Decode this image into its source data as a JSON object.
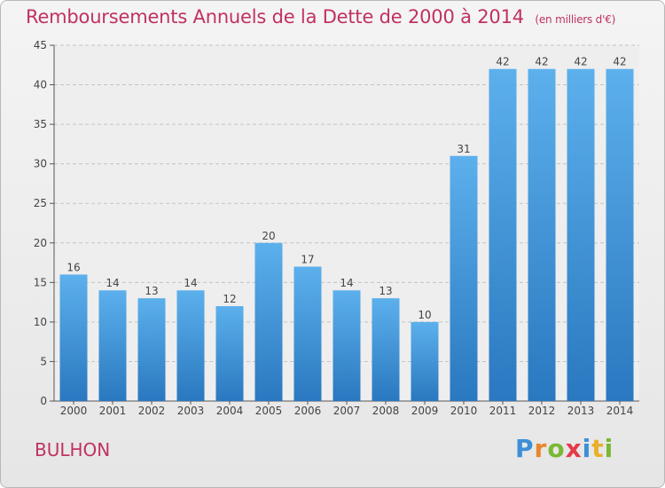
{
  "chart_data": {
    "type": "bar",
    "title": "Remboursements Annuels de la Dette de 2000 à 2014",
    "subtitle": "(en milliers d'€)",
    "categories": [
      "2000",
      "2001",
      "2002",
      "2003",
      "2004",
      "2005",
      "2006",
      "2007",
      "2008",
      "2009",
      "2010",
      "2011",
      "2012",
      "2013",
      "2014"
    ],
    "values": [
      16,
      14,
      13,
      14,
      12,
      20,
      17,
      14,
      13,
      10,
      31,
      42,
      42,
      42,
      42
    ],
    "ylim": [
      0,
      45
    ],
    "yticks": [
      0,
      5,
      10,
      15,
      20,
      25,
      30,
      35,
      40,
      45
    ],
    "xlabel": "",
    "ylabel": "",
    "grid": "horizontal dashed",
    "bar_color": "#4a9ee0",
    "text_color": "#c0325f"
  },
  "commune": "BULHON",
  "logo": {
    "letters": [
      "P",
      "r",
      "o",
      "x",
      "i",
      "t",
      "i"
    ]
  }
}
